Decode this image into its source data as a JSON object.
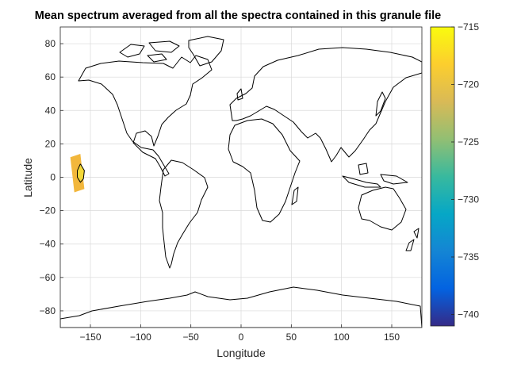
{
  "chart_data": {
    "type": "heatmap",
    "title": "Mean spectrum averaged from all the spectra contained in this granule file",
    "xlabel": "Longitude",
    "ylabel": "Latitude",
    "xlim": [
      -180,
      180
    ],
    "ylim": [
      -90,
      90
    ],
    "xticks": [
      -150,
      -100,
      -50,
      0,
      50,
      100,
      150
    ],
    "yticks": [
      -80,
      -60,
      -40,
      -20,
      0,
      20,
      40,
      60,
      80
    ],
    "grid": true,
    "basemap": "world coastlines",
    "swath": {
      "corners_lonlat": [
        [
          -170,
          12
        ],
        [
          -160,
          14
        ],
        [
          -156,
          -7
        ],
        [
          -166,
          -9
        ]
      ],
      "value_range": [
        -719,
        -718
      ],
      "contour_lonlat": [
        [
          -160,
          8
        ],
        [
          -156,
          4
        ],
        [
          -157,
          -1
        ],
        [
          -160,
          -3
        ],
        [
          -163,
          0
        ],
        [
          -163,
          4
        ]
      ]
    },
    "colorbar": {
      "colormap": "parula",
      "limits": [
        -741,
        -715
      ],
      "ticks": [
        -715,
        -720,
        -725,
        -730,
        -735,
        -740
      ]
    }
  }
}
